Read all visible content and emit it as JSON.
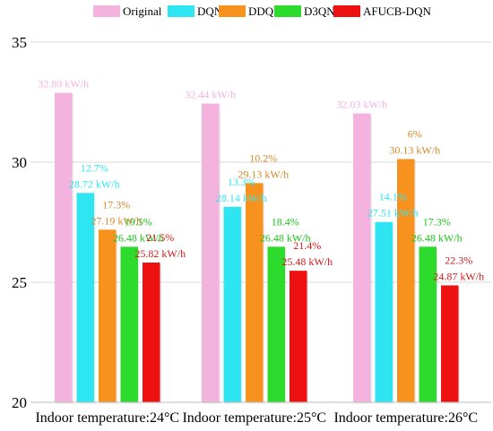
{
  "chart_data": {
    "type": "bar",
    "title": "",
    "xlabel": "",
    "ylabel": "",
    "ylim": [
      20,
      35
    ],
    "yticks": [
      20,
      25,
      30,
      35
    ],
    "grid": true,
    "legend_position": "top",
    "categories": [
      "Indoor temperature:24°C",
      "Indoor temperature:25°C",
      "Indoor temperature:26°C"
    ],
    "series": [
      {
        "name": "Original",
        "color": "#f4b3df",
        "label_color": "#f4b3df",
        "values": [
          32.89,
          32.44,
          32.03
        ],
        "labels": [
          {
            "pct": "",
            "value": "32.89 kW/h"
          },
          {
            "pct": "",
            "value": "32.44 kW/h"
          },
          {
            "pct": "",
            "value": "32.03 kW/h"
          }
        ]
      },
      {
        "name": "DQN",
        "color": "#2ee6f2",
        "label_color": "#2ee6f2",
        "values": [
          28.72,
          28.14,
          27.51
        ],
        "labels": [
          {
            "pct": "12.7%",
            "value": "28.72 kW/h"
          },
          {
            "pct": "13.3%",
            "value": "28.14 kW/h"
          },
          {
            "pct": "14.1%",
            "value": "27.51 kW/h"
          }
        ]
      },
      {
        "name": "DDQN",
        "color": "#f7921e",
        "label_color": "#d8892a",
        "values": [
          27.19,
          29.13,
          30.13
        ],
        "labels": [
          {
            "pct": "17.3%",
            "value": "27.19 kW/h"
          },
          {
            "pct": "10.2%",
            "value": "29.13 kW/h"
          },
          {
            "pct": "6%",
            "value": "30.13 kW/h"
          }
        ]
      },
      {
        "name": "D3QN",
        "color": "#2ddb2d",
        "label_color": "#21c21d",
        "values": [
          26.48,
          26.48,
          26.48
        ],
        "labels": [
          {
            "pct": "19.5%",
            "value": "26.48 kW/h"
          },
          {
            "pct": "18.4%",
            "value": "26.48 kW/h"
          },
          {
            "pct": "17.3%",
            "value": "26.48 kW/h"
          }
        ]
      },
      {
        "name": "AFUCB-DQN",
        "color": "#ee1111",
        "label_color": "#d61a1a",
        "values": [
          25.82,
          25.48,
          24.87
        ],
        "labels": [
          {
            "pct": "21.5%",
            "value": "25.82 kW/h"
          },
          {
            "pct": "21.4%",
            "value": "25.48 kW/h"
          },
          {
            "pct": "22.3%",
            "value": "24.87 kW/h"
          }
        ]
      }
    ]
  }
}
